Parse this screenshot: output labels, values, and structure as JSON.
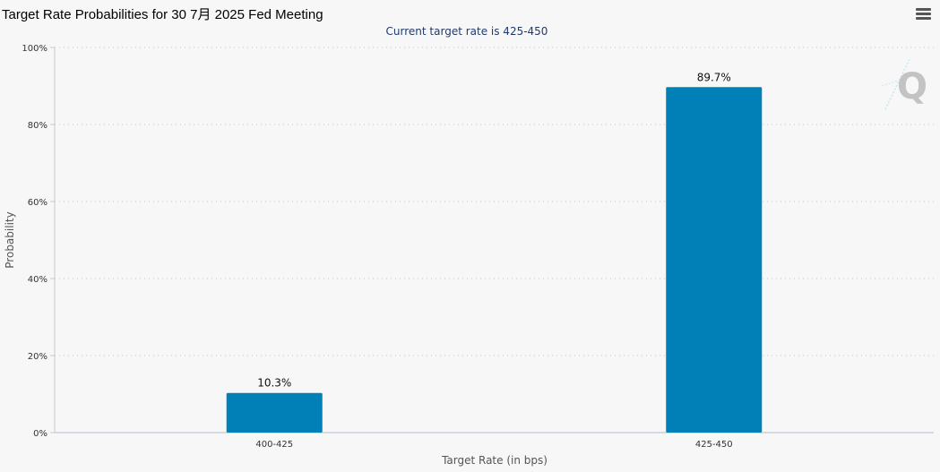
{
  "header": {
    "title": "Target Rate Probabilities for 30 7月 2025 Fed Meeting",
    "menu_icon": "hamburger-menu-icon"
  },
  "watermark_icon": "q-logo-icon",
  "colors": {
    "bar": "#0180b8",
    "grid": "#d7d7d7",
    "subtitle": "#223a6a"
  },
  "chart_data": {
    "type": "bar",
    "title": "Target Rate Probabilities for 30 7月 2025 Fed Meeting",
    "subtitle": "Current target rate is 425-450",
    "xlabel": "Target Rate (in bps)",
    "ylabel": "Probability",
    "categories": [
      "400-425",
      "425-450"
    ],
    "values": [
      10.3,
      89.7
    ],
    "data_labels": [
      "10.3%",
      "89.7%"
    ],
    "ylim": [
      0,
      100
    ],
    "yticks": [
      "0%",
      "20%",
      "40%",
      "60%",
      "80%",
      "100%"
    ],
    "ytick_values": [
      0,
      20,
      40,
      60,
      80,
      100
    ],
    "grid": true,
    "legend": "none"
  }
}
